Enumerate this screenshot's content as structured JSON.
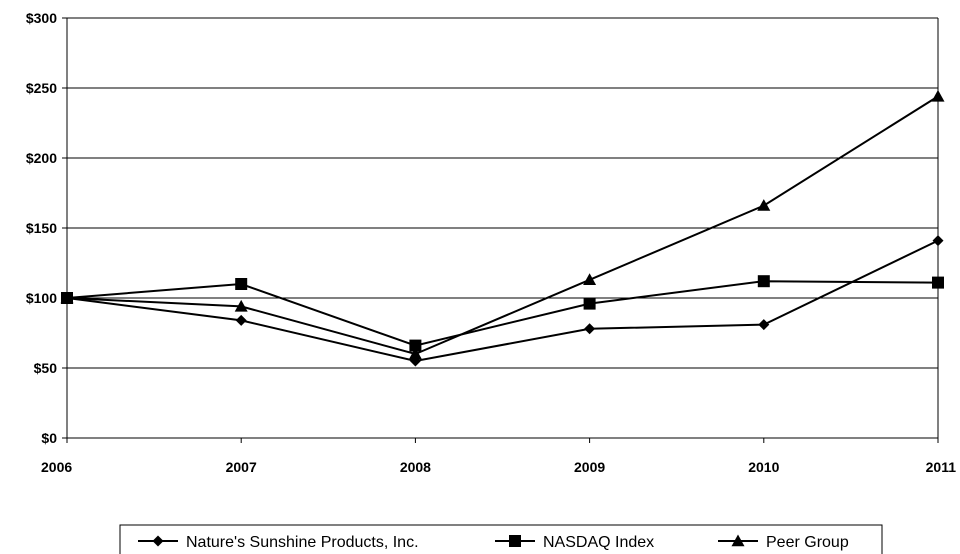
{
  "chart_data": {
    "type": "line",
    "x": [
      "2006",
      "2007",
      "2008",
      "2009",
      "2010",
      "2011"
    ],
    "ylim": [
      0,
      300
    ],
    "yticks": [
      0,
      50,
      100,
      150,
      200,
      250,
      300
    ],
    "ytick_labels": [
      "$0",
      "$50",
      "$100",
      "$150",
      "$200",
      "$250",
      "$300"
    ],
    "grid": true,
    "legend_position": "bottom",
    "series": [
      {
        "name": "Nature's Sunshine Products, Inc.",
        "marker": "diamond",
        "values": [
          100,
          84,
          55,
          78,
          81,
          141
        ]
      },
      {
        "name": "NASDAQ Index",
        "marker": "square",
        "values": [
          100,
          110,
          66,
          96,
          112,
          111
        ]
      },
      {
        "name": "Peer Group",
        "marker": "triangle",
        "values": [
          100,
          94,
          60,
          113,
          166,
          244
        ]
      }
    ],
    "line_color": "#000000"
  }
}
